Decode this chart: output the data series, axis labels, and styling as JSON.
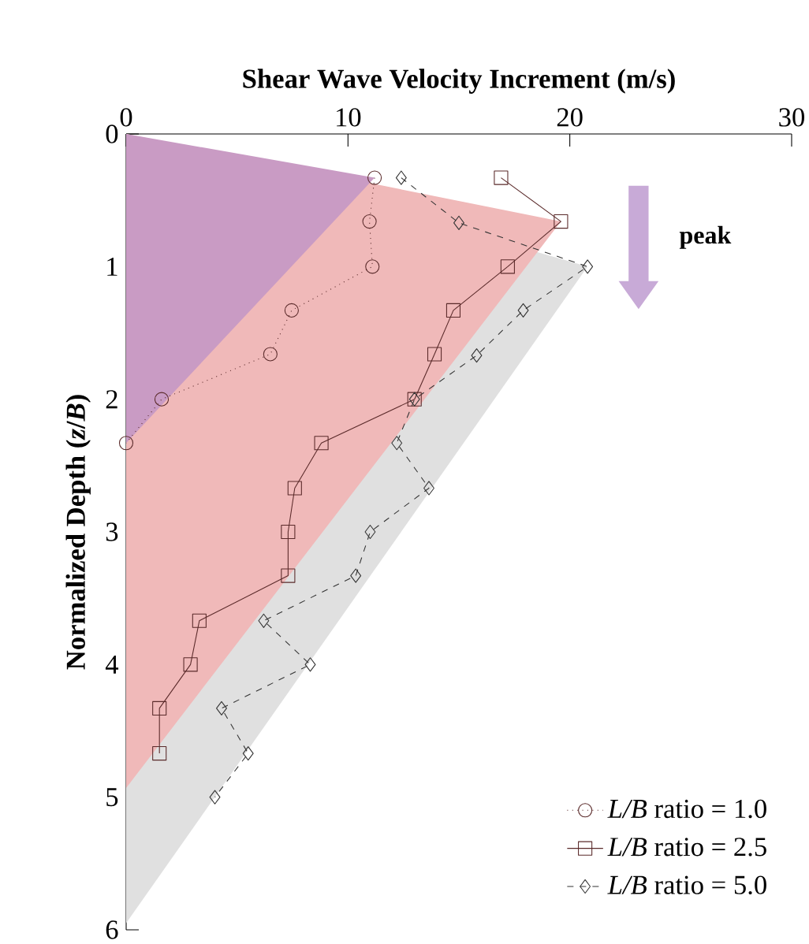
{
  "chart_data": {
    "type": "line",
    "xlabel": "Shear Wave Velocity Increment (m/s)",
    "ylabel": "Normalized Depth (*z*/*B*)",
    "xlim": [
      0,
      30
    ],
    "xticks": [
      0,
      10,
      20,
      30
    ],
    "ylim": [
      6,
      0
    ],
    "yticks": [
      0,
      1,
      2,
      3,
      4,
      5,
      6
    ],
    "legend": "bottom right",
    "annotations": [
      "peak"
    ],
    "series": [
      {
        "type": "area",
        "color": "#e0e0e0",
        "x": [
          0,
          20.8,
          0
        ],
        "values": [
          0,
          1.0,
          5.95
        ]
      },
      {
        "type": "area",
        "color": "#f0b9b9",
        "x": [
          0,
          19.6,
          0
        ],
        "values": [
          0,
          0.66,
          4.93
        ]
      },
      {
        "type": "area",
        "color": "#c99bc4",
        "x": [
          0,
          11.2,
          0
        ],
        "values": [
          0,
          0.33,
          2.33
        ]
      },
      {
        "name": "*L/B* ratio = 1.0",
        "color": "#5a2a2a",
        "marker": "circle",
        "line_style": "dotted",
        "x": [
          11.2,
          10.97,
          11.1,
          7.46,
          6.5,
          1.6,
          0
        ],
        "values": [
          0.33,
          0.66,
          1.0,
          1.33,
          1.66,
          2.0,
          2.33
        ]
      },
      {
        "name": "*L/B* ratio = 2.5",
        "color": "#5a2a2a",
        "marker": "square",
        "line_style": "solid",
        "x": [
          16.9,
          19.6,
          17.2,
          14.75,
          13.9,
          13.0,
          8.8,
          7.6,
          7.3,
          7.3,
          3.3,
          2.9,
          1.5,
          1.5
        ],
        "values": [
          0.33,
          0.66,
          1.0,
          1.33,
          1.66,
          2.0,
          2.33,
          2.67,
          3.0,
          3.33,
          3.67,
          4.0,
          4.33,
          4.67
        ]
      },
      {
        "name": "*L/B* ratio = 5.0",
        "color": "#333333",
        "marker": "diamond",
        "line_style": "dashed",
        "x": [
          12.4,
          15.0,
          20.8,
          17.9,
          15.8,
          13.0,
          12.2,
          13.65,
          11.0,
          10.35,
          6.2,
          8.3,
          4.3,
          5.5,
          4.0
        ],
        "values": [
          0.33,
          0.67,
          1.0,
          1.33,
          1.67,
          2.0,
          2.33,
          2.67,
          3.0,
          3.33,
          3.67,
          4.0,
          4.33,
          4.67,
          5.0
        ]
      }
    ]
  }
}
